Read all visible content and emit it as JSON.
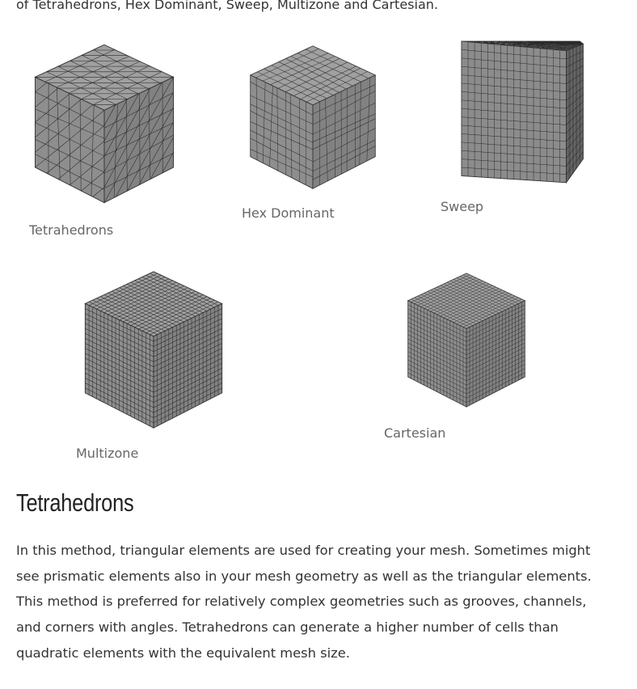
{
  "intro": "of Tetrahedrons, Hex Dominant, Sweep, Multizone and Cartesian.",
  "figures": [
    {
      "caption": "Tetrahedrons"
    },
    {
      "caption": "Hex Dominant"
    },
    {
      "caption": "Sweep"
    },
    {
      "caption": "Multizone"
    },
    {
      "caption": "Cartesian"
    }
  ],
  "section": {
    "heading": "Tetrahedrons",
    "paragraph": "In this method, triangular elements are used for creating your mesh. Sometimes might see prismatic elements also in your mesh geometry as well as the triangular elements. This method is preferred for relatively complex geometries such as grooves, channels, and corners with angles. Tetrahedrons can generate a higher number of cells than quadratic elements with the equivalent mesh size."
  }
}
